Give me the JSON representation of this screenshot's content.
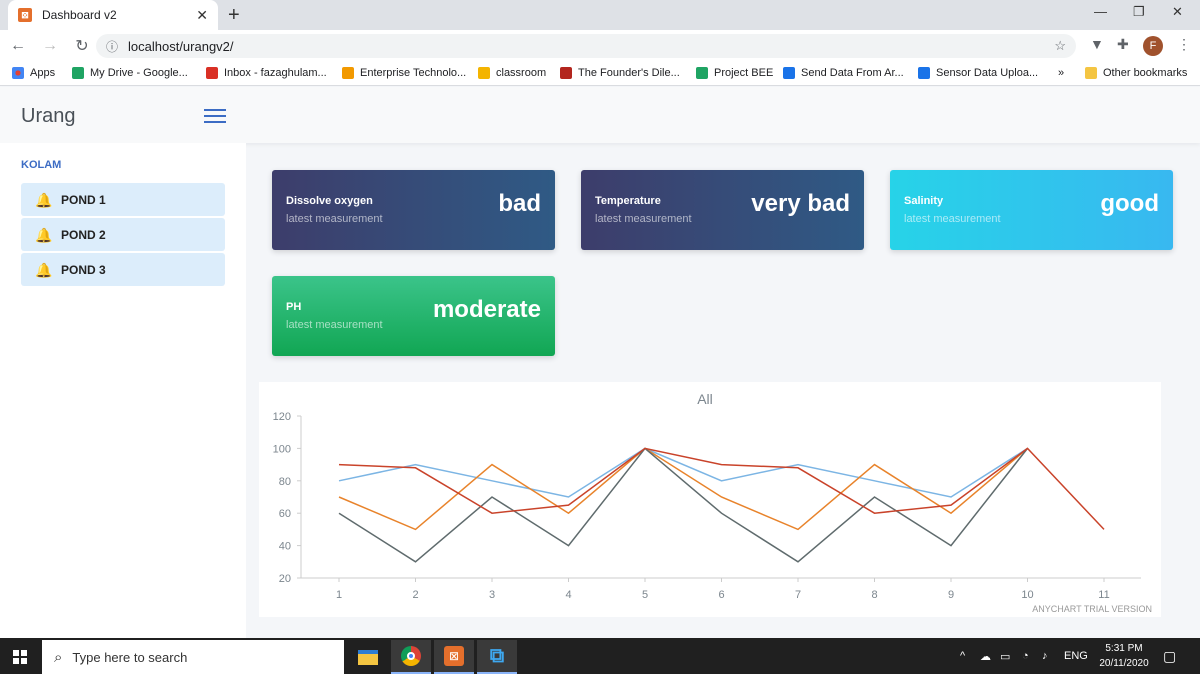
{
  "browser": {
    "tab_title": "Dashboard v2",
    "url": "localhost/urangv2/",
    "bookmarks": [
      {
        "label": "Apps",
        "color": "#e34133"
      },
      {
        "label": "My Drive - Google...",
        "color": "#1fa463"
      },
      {
        "label": "Inbox - fazaghulam...",
        "color": "#d93025"
      },
      {
        "label": "Enterprise Technolo...",
        "color": "#f29900"
      },
      {
        "label": "classroom",
        "color": "#f4b400"
      },
      {
        "label": "The Founder's Dile...",
        "color": "#b3261e"
      },
      {
        "label": "Project BEE",
        "color": "#1fa463"
      },
      {
        "label": "Send Data From Ar...",
        "color": "#1a73e8"
      },
      {
        "label": "Sensor Data Uploa...",
        "color": "#1a73e8"
      }
    ],
    "more_label": "»",
    "other_bookmarks": "Other bookmarks",
    "profile_initial": "F"
  },
  "app": {
    "brand": "Urang",
    "sidebar_heading": "KOLAM",
    "ponds": [
      "POND 1",
      "POND 2",
      "POND 3"
    ]
  },
  "cards": [
    {
      "title": "Dissolve oxygen",
      "subtitle": "latest measurement",
      "value": "bad"
    },
    {
      "title": "Temperature",
      "subtitle": "latest measurement",
      "value": "very bad"
    },
    {
      "title": "Salinity",
      "subtitle": "latest measurement",
      "value": "good"
    },
    {
      "title": "PH",
      "subtitle": "latest measurement",
      "value": "moderate"
    }
  ],
  "chart_data": {
    "type": "line",
    "title": "All",
    "x": [
      1,
      2,
      3,
      4,
      5,
      6,
      7,
      8,
      9,
      10,
      11
    ],
    "ylim": [
      20,
      120
    ],
    "yticks": [
      20,
      40,
      60,
      80,
      100,
      120
    ],
    "series": [
      {
        "color": "#7cb5e4",
        "values": [
          80,
          90,
          80,
          70,
          100,
          80,
          90,
          80,
          70,
          100,
          null
        ]
      },
      {
        "color": "#e8832b",
        "values": [
          70,
          50,
          90,
          60,
          100,
          70,
          50,
          90,
          60,
          100,
          null
        ]
      },
      {
        "color": "#5f6b6d",
        "values": [
          60,
          30,
          70,
          40,
          100,
          60,
          30,
          70,
          40,
          100,
          null
        ]
      },
      {
        "color": "#c9432a",
        "values": [
          90,
          88,
          60,
          65,
          100,
          90,
          88,
          60,
          65,
          100,
          50
        ]
      }
    ],
    "watermark": "ANYCHART TRIAL VERSION"
  },
  "taskbar": {
    "search_placeholder": "Type here to search",
    "language": "ENG",
    "time": "5:31 PM",
    "date": "20/11/2020"
  }
}
